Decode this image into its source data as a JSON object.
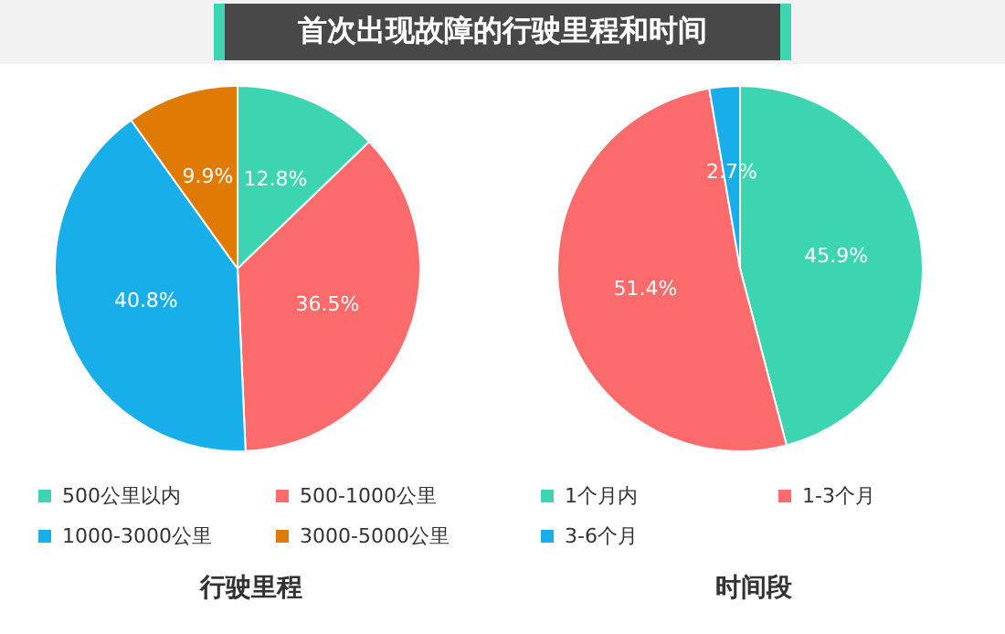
{
  "chart_data": [
    {
      "type": "pie",
      "title": "首次出现故障的行驶里程和时间",
      "xlabel": "行驶里程",
      "categories": [
        "500公里以内",
        "500-1000公里",
        "1000-3000公里",
        "3000-5000公里"
      ],
      "values": [
        12.8,
        36.5,
        40.8,
        9.9
      ],
      "value_labels": [
        "12.8%",
        "36.5%",
        "40.8%",
        "9.9%"
      ],
      "colors": [
        "#3dd5b1",
        "#fc6b6b",
        "#17aee9",
        "#df7a05"
      ],
      "legend": "bottom"
    },
    {
      "type": "pie",
      "xlabel": "时间段",
      "categories": [
        "1个月内",
        "1-3个月",
        "3-6个月"
      ],
      "values": [
        45.9,
        51.4,
        2.7
      ],
      "value_labels": [
        "45.9%",
        "51.4%",
        "2.7%"
      ],
      "colors": [
        "#3dd5b1",
        "#fc6b6b",
        "#17aee9"
      ],
      "legend": "bottom"
    }
  ]
}
